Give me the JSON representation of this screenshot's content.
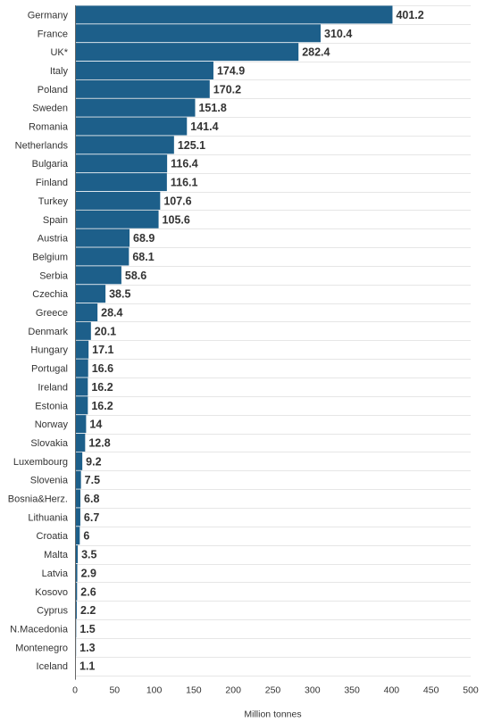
{
  "chart_data": {
    "type": "bar",
    "orientation": "horizontal",
    "categories": [
      "Germany",
      "France",
      "UK*",
      "Italy",
      "Poland",
      "Sweden",
      "Romania",
      "Netherlands",
      "Bulgaria",
      "Finland",
      "Turkey",
      "Spain",
      "Austria",
      "Belgium",
      "Serbia",
      "Czechia",
      "Greece",
      "Denmark",
      "Hungary",
      "Portugal",
      "Ireland",
      "Estonia",
      "Norway",
      "Slovakia",
      "Luxembourg",
      "Slovenia",
      "Bosnia&Herz.",
      "Lithuania",
      "Croatia",
      "Malta",
      "Latvia",
      "Kosovo",
      "Cyprus",
      "N.Macedonia",
      "Montenegro",
      "Iceland"
    ],
    "values": [
      401.2,
      310.4,
      282.4,
      174.9,
      170.2,
      151.8,
      141.4,
      125.1,
      116.4,
      116.1,
      107.6,
      105.6,
      68.9,
      68.1,
      58.6,
      38.5,
      28.4,
      20.1,
      17.1,
      16.6,
      16.2,
      16.2,
      14,
      12.8,
      9.2,
      7.5,
      6.8,
      6.7,
      6,
      3.5,
      2.9,
      2.6,
      2.2,
      1.5,
      1.3,
      1.1
    ],
    "xlabel": "Million tonnes",
    "xlim": [
      0,
      500
    ],
    "xticks": [
      0,
      50,
      100,
      150,
      200,
      250,
      300,
      350,
      400,
      450,
      500
    ],
    "grid": true,
    "bar_color": "#1d5f8a"
  }
}
